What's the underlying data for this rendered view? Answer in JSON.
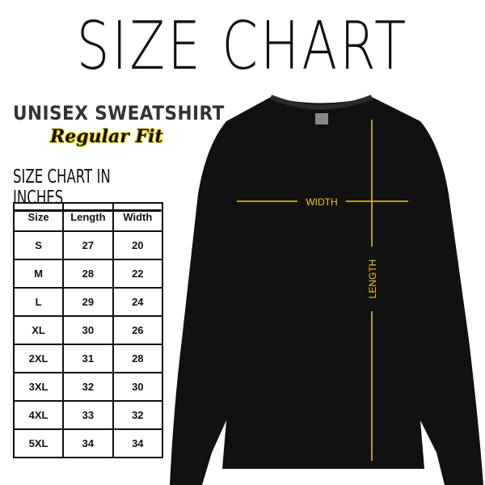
{
  "title": "SIZE CHART",
  "product": "UNISEX SWEATSHIRT",
  "fit": "Regular Fit",
  "units_heading": "SIZE CHART IN INCHES",
  "table": {
    "headers": [
      "Size",
      "Length",
      "Width"
    ],
    "rows": [
      [
        "S",
        "27",
        "20"
      ],
      [
        "M",
        "28",
        "22"
      ],
      [
        "L",
        "29",
        "24"
      ],
      [
        "XL",
        "30",
        "26"
      ],
      [
        "2XL",
        "31",
        "28"
      ],
      [
        "3XL",
        "32",
        "30"
      ],
      [
        "4XL",
        "33",
        "32"
      ],
      [
        "5XL",
        "34",
        "34"
      ]
    ]
  },
  "measure": {
    "width_label": "WIDTH",
    "length_label": "LENGTH",
    "line_color": "#f2c811"
  }
}
